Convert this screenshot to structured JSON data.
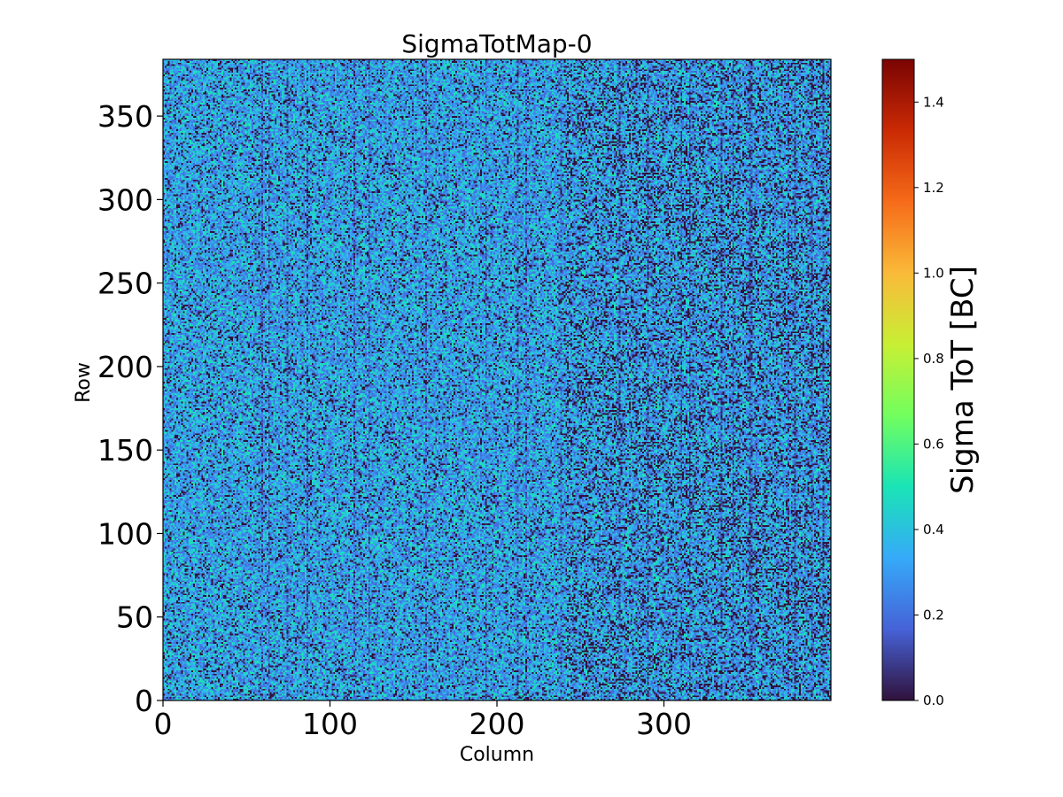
{
  "chart_data": {
    "type": "heatmap",
    "title": "SigmaTotMap-0",
    "xlabel": "Column",
    "ylabel": "Row",
    "xlim": [
      0,
      400
    ],
    "ylim": [
      0,
      384
    ],
    "x_ticks": [
      0,
      100,
      200,
      300
    ],
    "y_ticks": [
      0,
      50,
      100,
      150,
      200,
      250,
      300,
      350
    ],
    "grid": false,
    "grid_size": {
      "columns": 400,
      "rows": 384
    },
    "value_distribution": {
      "description_values": [
        0.0,
        0.2,
        0.3,
        0.4,
        0.5
      ],
      "typical_mean": 0.3,
      "min": 0.0,
      "max": 1.5
    },
    "colorbar": {
      "label": "Sigma ToT [BC]",
      "range": [
        0.0,
        1.5
      ],
      "ticks": [
        "0.0",
        "0.2",
        "0.4",
        "0.6",
        "0.8",
        "1.0",
        "1.2",
        "1.4"
      ],
      "colormap": "turbo",
      "colormap_stops": [
        "#30123b",
        "#4662d7",
        "#36aaf9",
        "#1ae4b6",
        "#72fe5e",
        "#c8ef34",
        "#faba39",
        "#f66b19",
        "#ca2a04",
        "#7a0403"
      ]
    }
  }
}
